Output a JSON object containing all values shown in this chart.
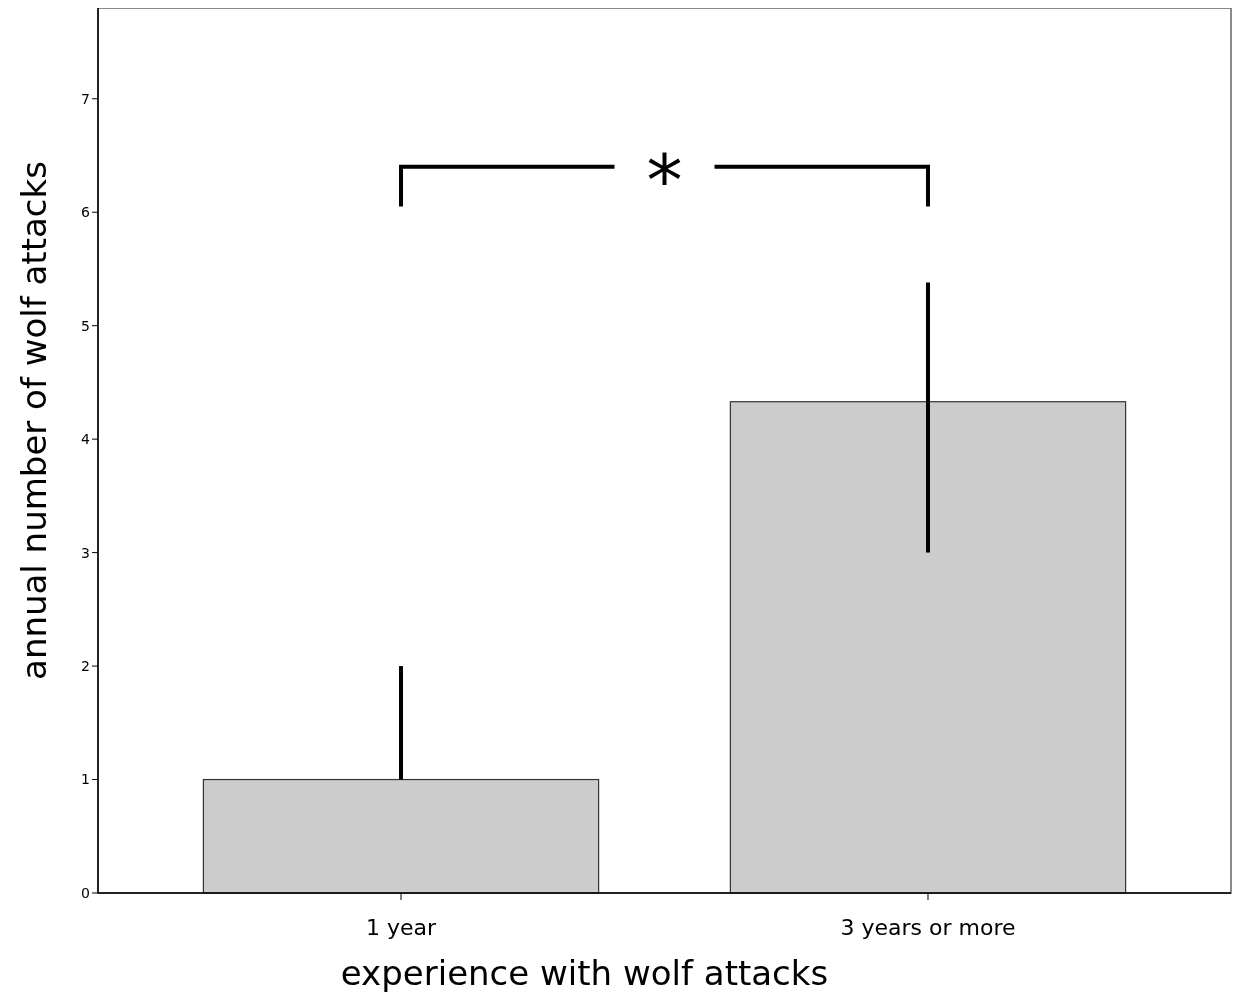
{
  "chart_data": {
    "type": "bar",
    "xlabel": "experience with wolf attacks",
    "ylabel": "annual number of wolf attacks",
    "categories": [
      "1 year",
      "3 years or more"
    ],
    "values": [
      1.0,
      4.33
    ],
    "errors": [
      [
        1.0,
        2.0
      ],
      [
        3.0,
        5.38
      ]
    ],
    "color": "#cccccc",
    "ylim": [
      0,
      7.8
    ],
    "yticks": [
      0,
      1,
      2,
      3,
      4,
      5,
      6,
      7
    ],
    "grid": false,
    "annotations": [
      "*"
    ]
  }
}
